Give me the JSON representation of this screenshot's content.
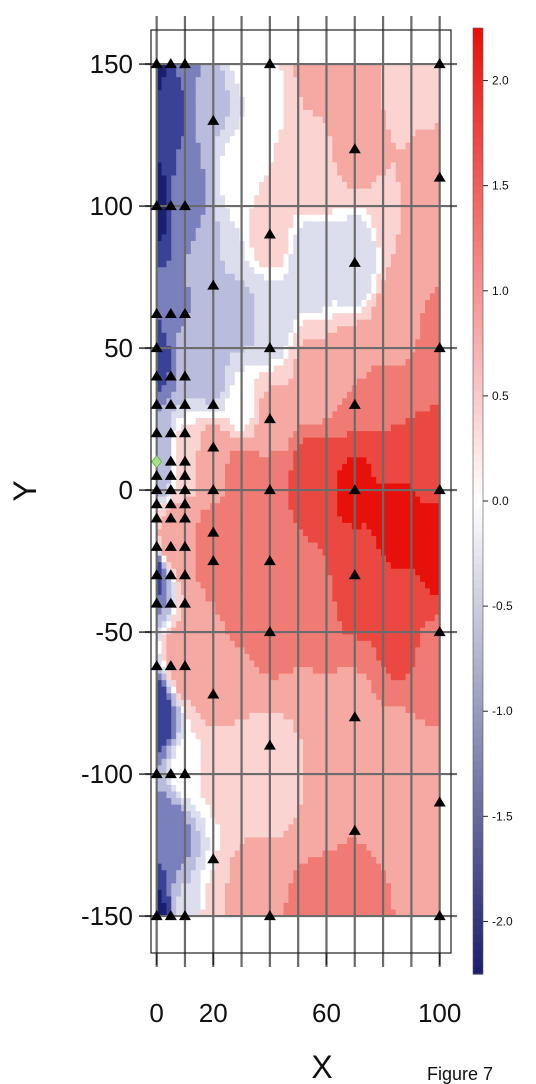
{
  "chart_data": {
    "type": "heatmap",
    "xlabel": "X",
    "ylabel": "Y",
    "caption": "Figure 7",
    "xlim": [
      -2,
      104
    ],
    "ylim": [
      -163,
      162
    ],
    "x_ticks": [
      "0",
      "20",
      "60",
      "100"
    ],
    "x_tick_values": [
      0,
      20,
      60,
      100
    ],
    "y_ticks": [
      "150",
      "100",
      "50",
      "0",
      "-50",
      "-100",
      "-150"
    ],
    "y_tick_values": [
      150,
      100,
      50,
      0,
      -50,
      -100,
      -150
    ],
    "grid_x": [
      0,
      10,
      20,
      30,
      40,
      50,
      60,
      70,
      80,
      90,
      100
    ],
    "grid_y": [
      150,
      100,
      50,
      0,
      -50,
      -100,
      -150
    ],
    "grid": true,
    "colorbar": {
      "range": [
        -2.25,
        2.25
      ],
      "ticks": [
        "2.0",
        "1.5",
        "1.0",
        "0.5",
        "0.0",
        "-0.5",
        "-1.0",
        "-1.5",
        "-2.0"
      ],
      "tick_values": [
        2.0,
        1.5,
        1.0,
        0.5,
        0.0,
        -0.5,
        -1.0,
        -1.5,
        -2.0
      ],
      "low_color": "#1a1f6e",
      "mid_color": "#ffffff",
      "high_color": "#e8100a"
    },
    "contour_levels": [
      {
        "value": -2.25,
        "color": "#1a1f6e"
      },
      {
        "value": -1.75,
        "color": "#3a4296"
      },
      {
        "value": -1.25,
        "color": "#7a80bb"
      },
      {
        "value": -0.75,
        "color": "#b9bcdc"
      },
      {
        "value": -0.25,
        "color": "#dcdded"
      },
      {
        "value": 0.0,
        "color": "#ffffff"
      },
      {
        "value": 0.25,
        "color": "#fbd3d1"
      },
      {
        "value": 0.75,
        "color": "#f6a8a3"
      },
      {
        "value": 1.25,
        "color": "#f07b74"
      },
      {
        "value": 1.75,
        "color": "#ea4840"
      },
      {
        "value": 2.25,
        "color": "#e8100a"
      }
    ],
    "field_points": [
      [
        0,
        150,
        -2.2
      ],
      [
        0,
        100,
        -2.2
      ],
      [
        0,
        50,
        -2.0
      ],
      [
        0,
        10,
        -1.0
      ],
      [
        0,
        -30,
        -1.6
      ],
      [
        0,
        -80,
        -1.9
      ],
      [
        0,
        -150,
        -2.1
      ],
      [
        5,
        140,
        -1.9
      ],
      [
        5,
        60,
        -1.3
      ],
      [
        5,
        -20,
        0.9
      ],
      [
        5,
        -120,
        -1.5
      ],
      [
        10,
        150,
        -1.2
      ],
      [
        10,
        100,
        -1.2
      ],
      [
        10,
        50,
        -0.8
      ],
      [
        10,
        10,
        0.3
      ],
      [
        10,
        -20,
        1.0
      ],
      [
        10,
        -60,
        0.9
      ],
      [
        10,
        -100,
        0.0
      ],
      [
        10,
        -150,
        -0.4
      ],
      [
        20,
        140,
        -0.6
      ],
      [
        20,
        80,
        -0.5
      ],
      [
        20,
        40,
        -0.6
      ],
      [
        20,
        10,
        0.9
      ],
      [
        20,
        -20,
        1.3
      ],
      [
        20,
        -70,
        0.7
      ],
      [
        20,
        -100,
        0.2
      ],
      [
        20,
        -150,
        0.2
      ],
      [
        30,
        150,
        -0.1
      ],
      [
        30,
        110,
        0.1
      ],
      [
        30,
        60,
        -0.6
      ],
      [
        30,
        30,
        0.0
      ],
      [
        30,
        5,
        1.2
      ],
      [
        30,
        -40,
        1.1
      ],
      [
        30,
        -90,
        0.5
      ],
      [
        30,
        -150,
        0.9
      ],
      [
        40,
        140,
        0.1
      ],
      [
        40,
        90,
        0.3
      ],
      [
        40,
        60,
        -0.4
      ],
      [
        40,
        25,
        0.6
      ],
      [
        40,
        0,
        1.5
      ],
      [
        40,
        -50,
        1.1
      ],
      [
        40,
        -100,
        0.2
      ],
      [
        40,
        -150,
        1.0
      ],
      [
        55,
        150,
        0.6
      ],
      [
        55,
        110,
        0.4
      ],
      [
        55,
        80,
        -0.5
      ],
      [
        55,
        40,
        0.6
      ],
      [
        55,
        5,
        1.8
      ],
      [
        55,
        -40,
        1.3
      ],
      [
        55,
        -90,
        0.5
      ],
      [
        55,
        -150,
        1.1
      ],
      [
        70,
        150,
        0.8
      ],
      [
        70,
        120,
        0.6
      ],
      [
        70,
        80,
        -0.4
      ],
      [
        70,
        40,
        1.0
      ],
      [
        70,
        0,
        2.1
      ],
      [
        70,
        -30,
        1.8
      ],
      [
        70,
        -80,
        0.9
      ],
      [
        70,
        -120,
        1.0
      ],
      [
        70,
        -150,
        1.2
      ],
      [
        85,
        150,
        0.4
      ],
      [
        85,
        100,
        0.5
      ],
      [
        85,
        60,
        0.9
      ],
      [
        85,
        20,
        1.5
      ],
      [
        85,
        -10,
        2.2
      ],
      [
        85,
        -50,
        1.6
      ],
      [
        85,
        -100,
        0.6
      ],
      [
        85,
        -150,
        1.0
      ],
      [
        100,
        150,
        0.3
      ],
      [
        100,
        110,
        0.6
      ],
      [
        100,
        50,
        1.1
      ],
      [
        100,
        10,
        1.8
      ],
      [
        100,
        -20,
        2.2
      ],
      [
        100,
        -60,
        1.4
      ],
      [
        100,
        -110,
        0.5
      ],
      [
        100,
        -150,
        0.8
      ]
    ],
    "markers": [
      [
        0,
        150
      ],
      [
        5,
        150
      ],
      [
        10,
        150
      ],
      [
        40,
        150
      ],
      [
        100,
        150
      ],
      [
        20,
        130
      ],
      [
        70,
        120
      ],
      [
        100,
        110
      ],
      [
        0,
        100
      ],
      [
        5,
        100
      ],
      [
        10,
        100
      ],
      [
        40,
        90
      ],
      [
        70,
        80
      ],
      [
        20,
        72
      ],
      [
        0,
        62
      ],
      [
        5,
        62
      ],
      [
        10,
        62
      ],
      [
        0,
        50
      ],
      [
        40,
        50
      ],
      [
        100,
        50
      ],
      [
        0,
        40
      ],
      [
        5,
        40
      ],
      [
        10,
        40
      ],
      [
        0,
        30
      ],
      [
        5,
        30
      ],
      [
        10,
        30
      ],
      [
        20,
        30
      ],
      [
        70,
        30
      ],
      [
        40,
        25
      ],
      [
        0,
        20
      ],
      [
        5,
        20
      ],
      [
        10,
        20
      ],
      [
        20,
        15
      ],
      [
        5,
        10
      ],
      [
        10,
        10
      ],
      [
        0,
        5
      ],
      [
        5,
        5
      ],
      [
        10,
        5
      ],
      [
        0,
        0
      ],
      [
        5,
        0
      ],
      [
        10,
        0
      ],
      [
        20,
        0
      ],
      [
        40,
        0
      ],
      [
        70,
        0
      ],
      [
        100,
        0
      ],
      [
        0,
        -5
      ],
      [
        5,
        -5
      ],
      [
        10,
        -5
      ],
      [
        0,
        -10
      ],
      [
        5,
        -10
      ],
      [
        10,
        -10
      ],
      [
        20,
        -15
      ],
      [
        0,
        -20
      ],
      [
        5,
        -20
      ],
      [
        10,
        -20
      ],
      [
        20,
        -25
      ],
      [
        40,
        -25
      ],
      [
        0,
        -30
      ],
      [
        5,
        -30
      ],
      [
        10,
        -30
      ],
      [
        70,
        -30
      ],
      [
        0,
        -40
      ],
      [
        5,
        -40
      ],
      [
        10,
        -40
      ],
      [
        40,
        -50
      ],
      [
        100,
        -50
      ],
      [
        0,
        -62
      ],
      [
        5,
        -62
      ],
      [
        10,
        -62
      ],
      [
        20,
        -72
      ],
      [
        70,
        -80
      ],
      [
        40,
        -90
      ],
      [
        0,
        -100
      ],
      [
        5,
        -100
      ],
      [
        10,
        -100
      ],
      [
        100,
        -110
      ],
      [
        70,
        -120
      ],
      [
        20,
        -130
      ],
      [
        0,
        -150
      ],
      [
        5,
        -150
      ],
      [
        10,
        -150
      ],
      [
        40,
        -150
      ],
      [
        100,
        -150
      ]
    ],
    "special_marker": {
      "x": 0,
      "y": 10,
      "shape": "diamond",
      "color": "#a8e08a"
    },
    "marker_color": "#000000"
  }
}
